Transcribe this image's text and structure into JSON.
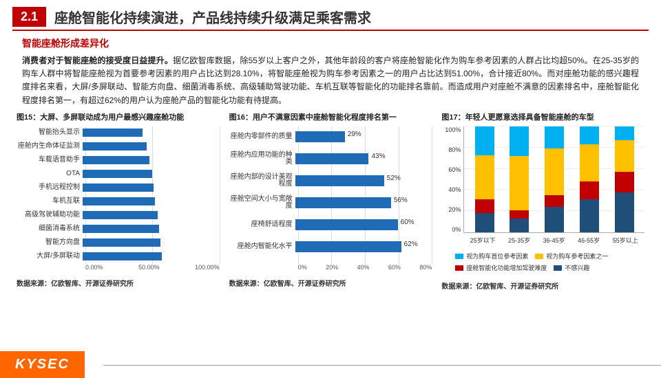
{
  "header": {
    "section_num": "2.1",
    "title": "座舱智能化持续演进，产品线持续升级满足乘客需求"
  },
  "subtitle": "智能座舱形成差异化",
  "body": {
    "lead": "消费者对于智能座舱的接受度日益提升。",
    "rest": "据亿欧智库数据，除55岁以上客户之外，其他年龄段的客户将座舱智能化作为购车参考因素的人群占比均超50%。在25-35岁的购车人群中将智能座舱视为首要参考因素的用户占比达到28.10%，将智能座舱视为购车参考因素之一的用户占比达到51.00%，合计接近80%。而对座舱功能的感兴趣程度排名来看，大屏/多屏联动、智能方向盘、细菌消毒系统、高级辅助驾驶功能、车机互联等智能化的功能排名靠前。而造成用户对座舱不满意的因素排名中，座舱智能化程度排名第一，有超过62%的用户认为座舱产品的智能化功能有待提高。"
  },
  "chart15": {
    "title": "图15：大屏、多屏联动成为用户最感兴趣座舱功能",
    "type": "bar-horizontal",
    "bar_color": "#1f6bb5",
    "grid_color": "#dddddd",
    "xticks": [
      "0.00%",
      "50.00%",
      "100.00%"
    ],
    "xmax": 100,
    "items": [
      {
        "label": "智能抬头显示",
        "value": 44
      },
      {
        "label": "座舱内生命体征监测",
        "value": 47
      },
      {
        "label": "车载语音助手",
        "value": 49
      },
      {
        "label": "OTA",
        "value": 51
      },
      {
        "label": "手机远程控制",
        "value": 52
      },
      {
        "label": "车机互联",
        "value": 53
      },
      {
        "label": "高级驾驶辅助功能",
        "value": 55
      },
      {
        "label": "细菌消毒系统",
        "value": 56
      },
      {
        "label": "智能方向盘",
        "value": 57
      },
      {
        "label": "大屏/多屏联动",
        "value": 58
      }
    ],
    "source": "数据来源：亿欧智库、开源证券研究所"
  },
  "chart16": {
    "title": "图16：用户不满意因素中座舱智能化程度排名第一",
    "type": "bar-horizontal",
    "bar_color": "#1f6bb5",
    "grid_color": "#dddddd",
    "xticks": [
      "0%",
      "20%",
      "40%",
      "60%",
      "80%"
    ],
    "xmax": 80,
    "items": [
      {
        "label": "座舱内零部件的质量",
        "value": 29,
        "show": "29%"
      },
      {
        "label": "座舱内应用功能的种类",
        "value": 43,
        "show": "43%"
      },
      {
        "label": "座舱内部的设计美观程度",
        "value": 52,
        "show": "52%"
      },
      {
        "label": "座舱空间大小与宽敞度",
        "value": 56,
        "show": "56%"
      },
      {
        "label": "座椅舒适程度",
        "value": 60,
        "show": "60%"
      },
      {
        "label": "座舱内智能化水平",
        "value": 62,
        "show": "62%"
      }
    ],
    "source": "数据来源：亿欧智库、开源证券研究所"
  },
  "chart17": {
    "title": "图17：年轻人更愿意选择具备智能座舱的车型",
    "type": "stacked-bar",
    "yticks": [
      "0%",
      "20%",
      "40%",
      "60%",
      "80%",
      "100%"
    ],
    "categories": [
      "25岁以下",
      "25-35岁",
      "36-45岁",
      "46-55岁",
      "55岁以上"
    ],
    "series": [
      {
        "name": "视为购车首位参考因素",
        "color": "#00b0f0"
      },
      {
        "name": "视为购车参考因素之一",
        "color": "#ffc000"
      },
      {
        "name": "座舱智能化功能增加驾驶难度",
        "color": "#c00000"
      },
      {
        "name": "不感兴趣",
        "color": "#1f4e79"
      }
    ],
    "data": [
      {
        "first": 27,
        "oneof": 42,
        "difficult": 13,
        "no_interest": 18
      },
      {
        "first": 28,
        "oneof": 51,
        "difficult": 8,
        "no_interest": 13
      },
      {
        "first": 21,
        "oneof": 44,
        "difficult": 11,
        "no_interest": 24
      },
      {
        "first": 17,
        "oneof": 35,
        "difficult": 17,
        "no_interest": 31
      },
      {
        "first": 13,
        "oneof": 30,
        "difficult": 19,
        "no_interest": 38
      }
    ],
    "source": "数据来源：亿欧智库、开源证券研究所"
  },
  "footer": {
    "logo": "KYSEC"
  }
}
